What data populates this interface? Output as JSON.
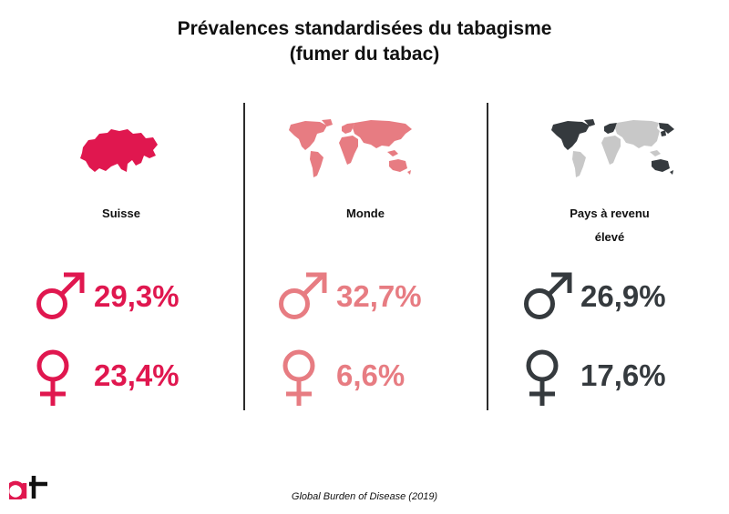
{
  "title": {
    "line1": "Prévalences standardisées du tabagisme",
    "line2": "(fumer du tabac)"
  },
  "colors": {
    "suisse": "#e0174f",
    "monde": "#e77c82",
    "high_income": "#353a3e",
    "map_grey": "#c8c8c8"
  },
  "columns": [
    {
      "label_line1": "Suisse",
      "label_line2": "",
      "men": "29,3%",
      "women": "23,4%",
      "icon": "switzerland-map-icon"
    },
    {
      "label_line1": "Monde",
      "label_line2": "",
      "men": "32,7%",
      "women": "6,6%",
      "icon": "world-map-icon"
    },
    {
      "label_line1": "Pays à revenu",
      "label_line2": "élevé",
      "men": "26,9%",
      "women": "17,6%",
      "icon": "world-high-income-map-icon"
    }
  ],
  "source": "Global Burden of Disease (2019)",
  "logo": "at-logo",
  "chart_data": {
    "type": "table",
    "title": "Prévalences standardisées du tabagisme (fumer du tabac)",
    "categories": [
      "Suisse",
      "Monde",
      "Pays à revenu élevé"
    ],
    "series": [
      {
        "name": "Hommes",
        "values": [
          29.3,
          32.7,
          26.9
        ]
      },
      {
        "name": "Femmes",
        "values": [
          23.4,
          6.6,
          17.6
        ]
      }
    ],
    "unit": "%"
  }
}
